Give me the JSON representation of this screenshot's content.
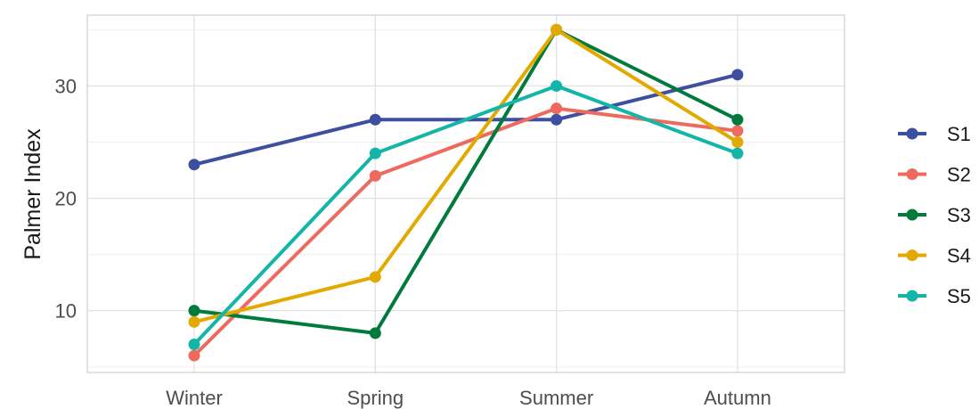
{
  "chart_data": {
    "type": "line",
    "title": "",
    "xlabel": "",
    "ylabel": "Palmer Index",
    "categories": [
      "Winter",
      "Spring",
      "Summer",
      "Autumn"
    ],
    "y_ticks": [
      10,
      20,
      30
    ],
    "ylim": [
      4.5,
      36.3
    ],
    "grid": true,
    "legend_position": "right",
    "series": [
      {
        "name": "S1",
        "color": "#3f4fa0",
        "values": [
          23,
          27,
          27,
          31
        ]
      },
      {
        "name": "S2",
        "color": "#ee6a5f",
        "values": [
          6,
          22,
          28,
          26
        ]
      },
      {
        "name": "S3",
        "color": "#007a3d",
        "values": [
          10,
          8,
          35,
          27
        ]
      },
      {
        "name": "S4",
        "color": "#e2aa00",
        "values": [
          9,
          13,
          35,
          25
        ]
      },
      {
        "name": "S5",
        "color": "#13b5a8",
        "values": [
          7,
          24,
          30,
          24
        ]
      }
    ]
  }
}
